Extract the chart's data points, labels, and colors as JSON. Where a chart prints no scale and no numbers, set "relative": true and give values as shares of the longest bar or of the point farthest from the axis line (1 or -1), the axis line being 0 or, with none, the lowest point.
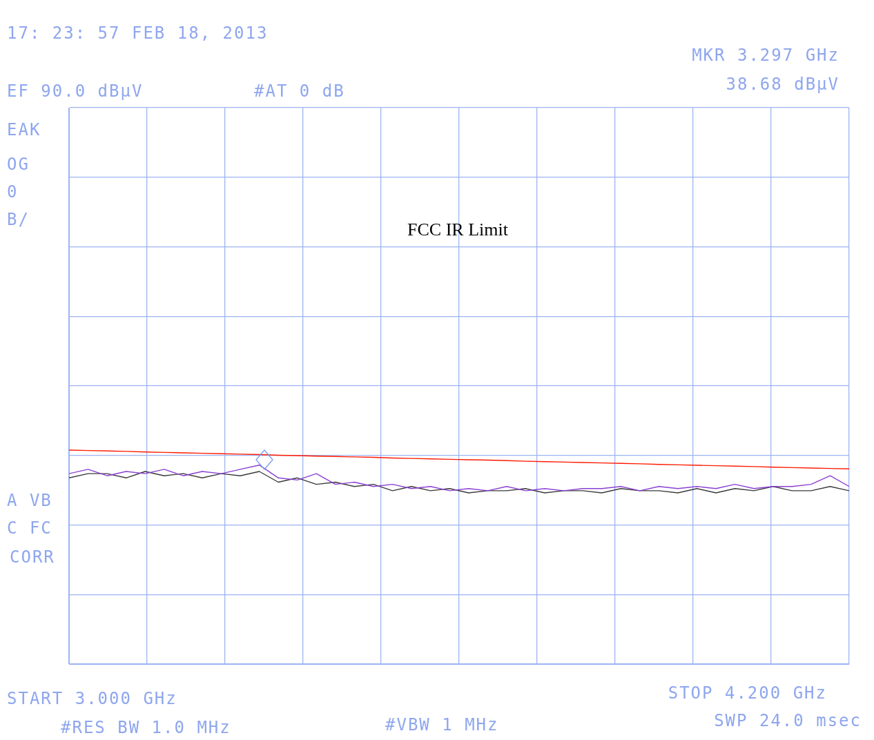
{
  "chart_data": {
    "type": "line",
    "relative": true,
    "grid": true,
    "marker": "none",
    "line_style": "solid",
    "categories": [
      null,
      null,
      null,
      null,
      null,
      null,
      null,
      null,
      null,
      null,
      null,
      null,
      null,
      null,
      null,
      null,
      null,
      null,
      null,
      null,
      null,
      null,
      null,
      null,
      null,
      null,
      null,
      null,
      null,
      null,
      null,
      null,
      null,
      null,
      null,
      null,
      null,
      null,
      null,
      null,
      null,
      null
    ],
    "series": [
      {
        "color": "#8a3fd1",
        "values": [
          0.89,
          0.91,
          0.88,
          0.9,
          0.89,
          0.91,
          0.88,
          0.9,
          0.89,
          0.91,
          0.93,
          0.87,
          0.86,
          0.89,
          0.84,
          0.85,
          0.83,
          0.84,
          0.82,
          0.83,
          0.81,
          0.82,
          0.81,
          0.83,
          0.81,
          0.82,
          0.81,
          0.82,
          0.82,
          0.83,
          0.81,
          0.83,
          0.82,
          0.83,
          0.82,
          0.84,
          0.82,
          0.83,
          0.83,
          0.84,
          0.88,
          0.83
        ]
      },
      {
        "color": "#3a3a3a",
        "values": [
          0.87,
          0.89,
          0.89,
          0.87,
          0.9,
          0.88,
          0.89,
          0.87,
          0.89,
          0.88,
          0.9,
          0.85,
          0.87,
          0.84,
          0.85,
          0.83,
          0.84,
          0.81,
          0.83,
          0.81,
          0.82,
          0.8,
          0.81,
          0.81,
          0.82,
          0.8,
          0.81,
          0.81,
          0.8,
          0.82,
          0.81,
          0.81,
          0.8,
          0.82,
          0.8,
          0.82,
          0.81,
          0.83,
          0.81,
          0.81,
          0.83,
          0.81
        ]
      },
      {
        "color": "#ff1a00",
        "values": [
          1.0,
          0.998,
          0.996,
          0.994,
          0.991,
          0.989,
          0.987,
          0.985,
          0.983,
          0.981,
          0.979,
          0.976,
          0.974,
          0.972,
          0.97,
          0.968,
          0.966,
          0.963,
          0.961,
          0.959,
          0.957,
          0.955,
          0.953,
          0.951,
          0.948,
          0.946,
          0.944,
          0.942,
          0.94,
          0.938,
          0.936,
          0.933,
          0.931,
          0.929,
          0.927,
          0.925,
          0.923,
          0.92,
          0.918,
          0.916,
          0.914,
          0.912
        ]
      }
    ],
    "annotations": [
      "17: 23: 57 FEB 18, 2013",
      "EF 90.0 dBµV",
      "#AT 0 dB",
      "MKR 3.297 GHz",
      "38.68 dBµV",
      "EAK",
      "OG",
      "0",
      "B/",
      "A VB",
      "C FC",
      "CORR",
      "START 3.000 GHz",
      "#RES BW 1.0 MHz",
      "#VBW 1 MHz",
      "STOP 4.200 GHz",
      "SWP 24.0 msec",
      "FCC IR Limit"
    ]
  }
}
